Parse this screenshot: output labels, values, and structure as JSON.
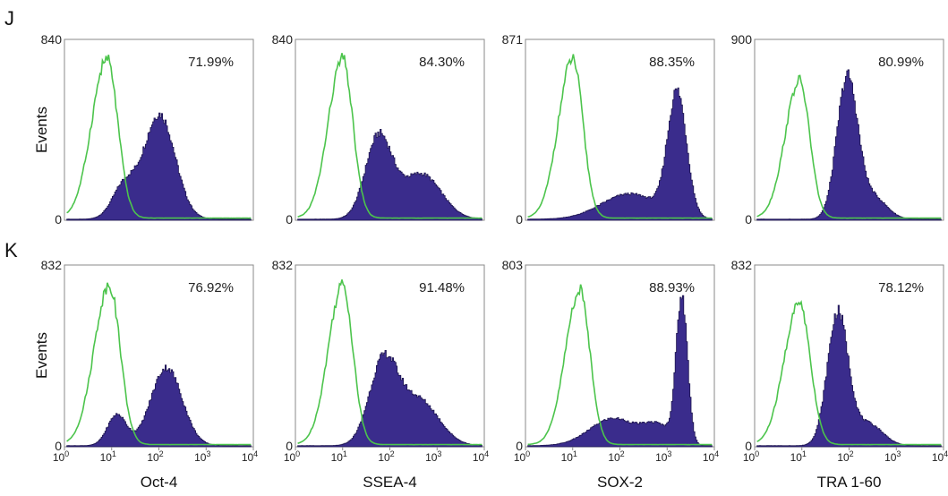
{
  "chart_data": [
    {
      "row_label": "J",
      "ylabel": "Events",
      "panels": [
        {
          "type": "area",
          "ymax": "840",
          "percent": "71.99%",
          "xticks": [
            "10",
            "10",
            "10",
            "10",
            "10"
          ],
          "xtick_exp": [
            "0",
            "1",
            "2",
            "3",
            "4"
          ],
          "control_series": {
            "type": "line",
            "peak_log": 0.9,
            "width": 0.17,
            "peak_frac": 0.88
          },
          "stained_series": {
            "type": "area",
            "components": [
              {
                "peak_log": 2.0,
                "width": 0.33,
                "height": 0.58
              },
              {
                "peak_log": 1.25,
                "width": 0.25,
                "height": 0.18
              }
            ]
          }
        },
        {
          "type": "area",
          "ymax": "840",
          "percent": "84.30%",
          "xticks": [
            "10",
            "10",
            "10",
            "10",
            "10"
          ],
          "xtick_exp": [
            "0",
            "1",
            "2",
            "3",
            "4"
          ],
          "control_series": {
            "type": "line",
            "peak_log": 1.0,
            "width": 0.16,
            "peak_frac": 0.88
          },
          "stained_series": {
            "type": "area",
            "components": [
              {
                "peak_log": 1.75,
                "width": 0.28,
                "height": 0.45
              },
              {
                "peak_log": 2.65,
                "width": 0.42,
                "height": 0.25
              }
            ]
          }
        },
        {
          "type": "area",
          "ymax": "871",
          "percent": "88.35%",
          "xticks": [
            "10",
            "10",
            "10",
            "10",
            "10"
          ],
          "xtick_exp": [
            "0",
            "1",
            "2",
            "3",
            "4"
          ],
          "control_series": {
            "type": "line",
            "peak_log": 1.0,
            "width": 0.16,
            "peak_frac": 0.88
          },
          "stained_series": {
            "type": "area",
            "components": [
              {
                "peak_log": 3.2,
                "width": 0.2,
                "height": 0.68
              },
              {
                "peak_log": 2.2,
                "width": 0.6,
                "height": 0.14
              }
            ]
          }
        },
        {
          "type": "area",
          "ymax": "900",
          "percent": "80.99%",
          "xticks": [
            "10",
            "10",
            "10",
            "10",
            "10"
          ],
          "xtick_exp": [
            "0",
            "1",
            "2",
            "3",
            "4"
          ],
          "control_series": {
            "type": "line",
            "peak_log": 0.95,
            "width": 0.16,
            "peak_frac": 0.76
          },
          "stained_series": {
            "type": "area",
            "components": [
              {
                "peak_log": 1.95,
                "width": 0.22,
                "height": 0.78
              },
              {
                "peak_log": 2.5,
                "width": 0.28,
                "height": 0.12
              }
            ]
          }
        }
      ],
      "xlabels": []
    },
    {
      "row_label": "K",
      "ylabel": "Events",
      "panels": [
        {
          "type": "area",
          "ymax": "832",
          "percent": "76.92%",
          "xticks": [
            "10",
            "10",
            "10",
            "10",
            "10"
          ],
          "xtick_exp": [
            "0",
            "1",
            "2",
            "3",
            "4"
          ],
          "control_series": {
            "type": "line",
            "peak_log": 0.95,
            "width": 0.17,
            "peak_frac": 0.88
          },
          "stained_series": {
            "type": "area",
            "components": [
              {
                "peak_log": 2.15,
                "width": 0.33,
                "height": 0.43
              },
              {
                "peak_log": 1.1,
                "width": 0.2,
                "height": 0.17
              }
            ]
          }
        },
        {
          "type": "area",
          "ymax": "832",
          "percent": "91.48%",
          "xticks": [
            "10",
            "10",
            "10",
            "10",
            "10"
          ],
          "xtick_exp": [
            "0",
            "1",
            "2",
            "3",
            "4"
          ],
          "control_series": {
            "type": "line",
            "peak_log": 1.0,
            "width": 0.16,
            "peak_frac": 0.88
          },
          "stained_series": {
            "type": "area",
            "components": [
              {
                "peak_log": 1.85,
                "width": 0.3,
                "height": 0.45
              },
              {
                "peak_log": 2.6,
                "width": 0.42,
                "height": 0.25
              }
            ]
          }
        },
        {
          "type": "area",
          "ymax": "803",
          "percent": "88.93%",
          "xticks": [
            "10",
            "10",
            "10",
            "10",
            "10"
          ],
          "xtick_exp": [
            "0",
            "1",
            "2",
            "3",
            "4"
          ],
          "control_series": {
            "type": "line",
            "peak_log": 1.15,
            "width": 0.16,
            "peak_frac": 0.85
          },
          "stained_series": {
            "type": "area",
            "components": [
              {
                "peak_log": 3.3,
                "width": 0.12,
                "height": 0.8
              },
              {
                "peak_log": 1.85,
                "width": 0.5,
                "height": 0.15
              },
              {
                "peak_log": 2.8,
                "width": 0.3,
                "height": 0.1
              }
            ]
          }
        },
        {
          "type": "area",
          "ymax": "832",
          "percent": "78.12%",
          "xticks": [
            "10",
            "10",
            "10",
            "10",
            "10"
          ],
          "xtick_exp": [
            "0",
            "1",
            "2",
            "3",
            "4"
          ],
          "control_series": {
            "type": "line",
            "peak_log": 0.95,
            "width": 0.17,
            "peak_frac": 0.78
          },
          "stained_series": {
            "type": "area",
            "components": [
              {
                "peak_log": 1.75,
                "width": 0.22,
                "height": 0.73
              },
              {
                "peak_log": 2.4,
                "width": 0.3,
                "height": 0.12
              }
            ]
          }
        }
      ],
      "xlabels": [
        "Oct-4",
        "SSEA-4",
        "SOX-2",
        "TRA 1-60"
      ]
    }
  ],
  "colors": {
    "control_line": "#4cc44c",
    "stained_fill": "#3a2c8c",
    "stained_edge": "#1d1450",
    "axis": "#8a8a8a"
  }
}
